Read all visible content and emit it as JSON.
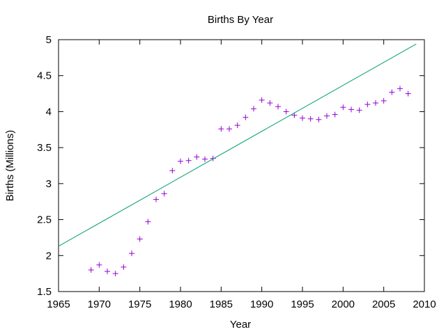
{
  "chart_data": {
    "type": "scatter",
    "title": "Births By Year",
    "xlabel": "Year",
    "ylabel": "Births (Millions)",
    "xlim": [
      1965,
      2010
    ],
    "ylim": [
      1.5,
      5
    ],
    "xticks": [
      "1965",
      "1970",
      "1975",
      "1980",
      "1985",
      "1990",
      "1995",
      "2000",
      "2005",
      "2010"
    ],
    "yticks": [
      "1.5",
      "2",
      "2.5",
      "3",
      "3.5",
      "4",
      "4.5",
      "5"
    ],
    "grid": false,
    "legend": "none",
    "series": [
      {
        "kind": "points",
        "marker": "plus",
        "color": "#9400d3",
        "x": [
          1969,
          1970,
          1971,
          1972,
          1973,
          1974,
          1975,
          1976,
          1977,
          1978,
          1979,
          1980,
          1981,
          1982,
          1983,
          1984,
          1985,
          1986,
          1987,
          1988,
          1989,
          1990,
          1991,
          1992,
          1993,
          1994,
          1995,
          1996,
          1997,
          1998,
          1999,
          2000,
          2001,
          2002,
          2003,
          2004,
          2005,
          2006,
          2007,
          2008
        ],
        "y": [
          1.8,
          1.87,
          1.78,
          1.75,
          1.84,
          2.03,
          2.23,
          2.47,
          2.78,
          2.86,
          3.18,
          3.31,
          3.32,
          3.37,
          3.34,
          3.35,
          3.76,
          3.76,
          3.81,
          3.92,
          4.04,
          4.16,
          4.12,
          4.07,
          4.0,
          3.95,
          3.91,
          3.9,
          3.89,
          3.94,
          3.96,
          4.06,
          4.03,
          4.02,
          4.1,
          4.12,
          4.15,
          4.27,
          4.32,
          4.25
        ]
      },
      {
        "kind": "line",
        "color": "#009e73",
        "x": [
          1965,
          2009
        ],
        "y": [
          2.13,
          4.94
        ]
      }
    ]
  }
}
